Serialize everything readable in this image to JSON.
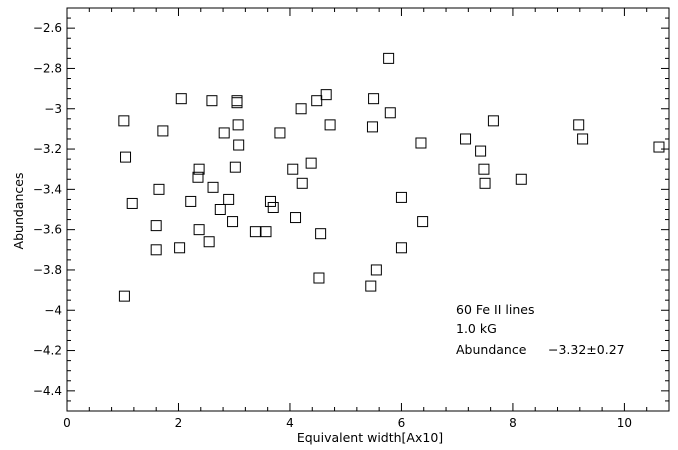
{
  "chart_data": {
    "type": "scatter",
    "title": "",
    "xlabel": "Equivalent width[Ax10]",
    "ylabel": "Abundances",
    "xlim": [
      0,
      10.8
    ],
    "ylim": [
      -4.5,
      -2.5
    ],
    "x_ticks": [
      0,
      2,
      4,
      6,
      8,
      10
    ],
    "x_tick_labels": [
      "0",
      "2",
      "4",
      "6",
      "8",
      "10"
    ],
    "y_ticks": [
      -2.6,
      -2.8,
      -3.0,
      -3.2,
      -3.4,
      -3.6,
      -3.8,
      -4.0,
      -4.2,
      -4.4
    ],
    "y_tick_labels": [
      "−2.6",
      "−2.8",
      "−3",
      "−3.2",
      "−3.4",
      "−3.6",
      "−3.8",
      "−4",
      "−4.2",
      "−4.4"
    ],
    "grid": false,
    "marker": "open-square",
    "color": "#000000",
    "points": [
      [
        1.02,
        -3.06
      ],
      [
        1.05,
        -3.24
      ],
      [
        1.03,
        -3.93
      ],
      [
        1.17,
        -3.47
      ],
      [
        1.65,
        -3.4
      ],
      [
        1.72,
        -3.11
      ],
      [
        1.6,
        -3.58
      ],
      [
        1.6,
        -3.7
      ],
      [
        2.05,
        -2.95
      ],
      [
        2.02,
        -3.69
      ],
      [
        2.22,
        -3.46
      ],
      [
        2.35,
        -3.34
      ],
      [
        2.37,
        -3.3
      ],
      [
        2.37,
        -3.6
      ],
      [
        2.55,
        -3.66
      ],
      [
        2.6,
        -2.96
      ],
      [
        2.62,
        -3.39
      ],
      [
        2.75,
        -3.5
      ],
      [
        2.82,
        -3.12
      ],
      [
        2.9,
        -3.45
      ],
      [
        2.97,
        -3.56
      ],
      [
        3.02,
        -3.29
      ],
      [
        3.05,
        -2.96
      ],
      [
        3.05,
        -2.97
      ],
      [
        3.07,
        -3.08
      ],
      [
        3.08,
        -3.18
      ],
      [
        3.38,
        -3.61
      ],
      [
        3.57,
        -3.61
      ],
      [
        3.65,
        -3.46
      ],
      [
        3.7,
        -3.49
      ],
      [
        3.82,
        -3.12
      ],
      [
        4.05,
        -3.3
      ],
      [
        4.1,
        -3.54
      ],
      [
        4.2,
        -3.0
      ],
      [
        4.22,
        -3.37
      ],
      [
        4.38,
        -3.27
      ],
      [
        4.48,
        -2.96
      ],
      [
        4.52,
        -3.84
      ],
      [
        4.55,
        -3.62
      ],
      [
        4.65,
        -2.93
      ],
      [
        4.72,
        -3.08
      ],
      [
        5.45,
        -3.88
      ],
      [
        5.48,
        -3.09
      ],
      [
        5.5,
        -2.95
      ],
      [
        5.55,
        -3.8
      ],
      [
        5.77,
        -2.75
      ],
      [
        5.8,
        -3.02
      ],
      [
        6.0,
        -3.44
      ],
      [
        6.0,
        -3.69
      ],
      [
        6.35,
        -3.17
      ],
      [
        6.38,
        -3.56
      ],
      [
        7.15,
        -3.15
      ],
      [
        7.42,
        -3.21
      ],
      [
        7.48,
        -3.3
      ],
      [
        7.5,
        -3.37
      ],
      [
        7.65,
        -3.06
      ],
      [
        8.15,
        -3.35
      ],
      [
        9.18,
        -3.08
      ],
      [
        9.25,
        -3.15
      ],
      [
        10.62,
        -3.19
      ]
    ],
    "annotations": [
      "60 Fe II lines",
      "1.0 kG",
      "Abundance",
      "−3.32±0.27"
    ]
  }
}
